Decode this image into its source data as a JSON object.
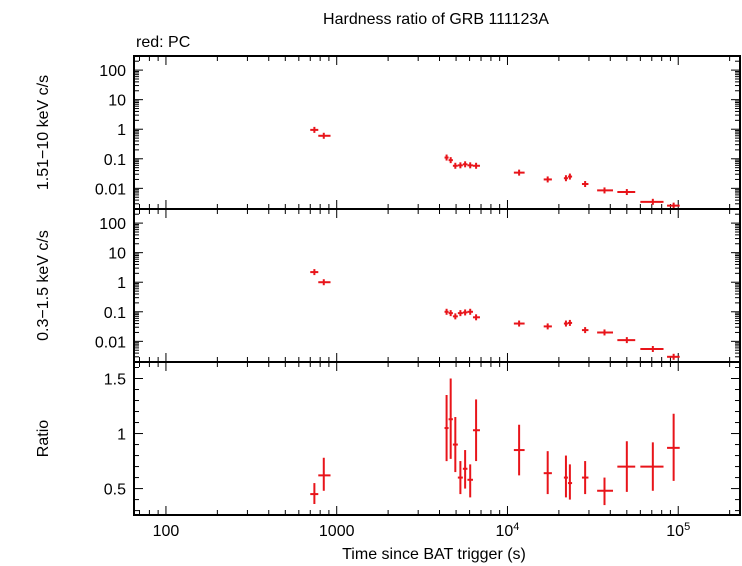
{
  "title": "Hardness ratio of GRB 111123A",
  "legend_note": "red: PC",
  "colors": {
    "series": "#e8141a",
    "axes": "#000000"
  },
  "chart_data": [
    {
      "type": "scatter",
      "panel": "hard",
      "ylabel": "1.51−10 keV c/s",
      "yscale": "log",
      "ylim": [
        0.002,
        300
      ],
      "xscale": "log",
      "xlim": [
        65,
        230000
      ],
      "ytick_labels": [
        "100",
        "10",
        "1",
        "0.1",
        "0.01"
      ],
      "ytick_values": [
        100,
        10,
        1,
        0.1,
        0.01
      ],
      "series": [
        {
          "points": [
            {
              "x": 740,
              "xlo": 700,
              "xhi": 780,
              "y": 0.95
            },
            {
              "x": 840,
              "xlo": 780,
              "xhi": 920,
              "y": 0.6
            },
            {
              "x": 4400,
              "xlo": 4280,
              "xhi": 4520,
              "y": 0.11
            },
            {
              "x": 4650,
              "xlo": 4520,
              "xhi": 4790,
              "y": 0.09
            },
            {
              "x": 4950,
              "xlo": 4790,
              "xhi": 5120,
              "y": 0.058
            },
            {
              "x": 5300,
              "xlo": 5120,
              "xhi": 5480,
              "y": 0.06
            },
            {
              "x": 5650,
              "xlo": 5480,
              "xhi": 5830,
              "y": 0.065
            },
            {
              "x": 6050,
              "xlo": 5830,
              "xhi": 6280,
              "y": 0.06
            },
            {
              "x": 6550,
              "xlo": 6280,
              "xhi": 6900,
              "y": 0.058
            },
            {
              "x": 11700,
              "xlo": 10900,
              "xhi": 12600,
              "y": 0.034
            },
            {
              "x": 17200,
              "xlo": 16300,
              "xhi": 18200,
              "y": 0.02
            },
            {
              "x": 22000,
              "xlo": 21400,
              "xhi": 22600,
              "y": 0.022
            },
            {
              "x": 23200,
              "xlo": 22600,
              "xhi": 23900,
              "y": 0.025
            },
            {
              "x": 28500,
              "xlo": 27300,
              "xhi": 29800,
              "y": 0.014
            },
            {
              "x": 37000,
              "xlo": 33500,
              "xhi": 41500,
              "y": 0.0085
            },
            {
              "x": 50000,
              "xlo": 44000,
              "xhi": 56000,
              "y": 0.0075
            },
            {
              "x": 71000,
              "xlo": 60000,
              "xhi": 82000,
              "y": 0.0035
            },
            {
              "x": 94000,
              "xlo": 86000,
              "xhi": 102000,
              "y": 0.0026
            }
          ]
        }
      ]
    },
    {
      "type": "scatter",
      "panel": "soft",
      "ylabel": "0.3−1.5 keV c/s",
      "yscale": "log",
      "ylim": [
        0.002,
        300
      ],
      "xscale": "log",
      "xlim": [
        65,
        230000
      ],
      "ytick_labels": [
        "100",
        "10",
        "1",
        "0.1",
        "0.01"
      ],
      "ytick_values": [
        100,
        10,
        1,
        0.1,
        0.01
      ],
      "series": [
        {
          "points": [
            {
              "x": 740,
              "xlo": 700,
              "xhi": 780,
              "y": 2.2
            },
            {
              "x": 840,
              "xlo": 780,
              "xhi": 920,
              "y": 1.0
            },
            {
              "x": 4400,
              "xlo": 4280,
              "xhi": 4520,
              "y": 0.1
            },
            {
              "x": 4650,
              "xlo": 4520,
              "xhi": 4790,
              "y": 0.09
            },
            {
              "x": 4950,
              "xlo": 4790,
              "xhi": 5120,
              "y": 0.07
            },
            {
              "x": 5300,
              "xlo": 5120,
              "xhi": 5480,
              "y": 0.09
            },
            {
              "x": 5650,
              "xlo": 5480,
              "xhi": 5830,
              "y": 0.095
            },
            {
              "x": 6050,
              "xlo": 5830,
              "xhi": 6280,
              "y": 0.1
            },
            {
              "x": 6550,
              "xlo": 6280,
              "xhi": 6900,
              "y": 0.065
            },
            {
              "x": 11700,
              "xlo": 10900,
              "xhi": 12600,
              "y": 0.04
            },
            {
              "x": 17200,
              "xlo": 16300,
              "xhi": 18200,
              "y": 0.032
            },
            {
              "x": 22000,
              "xlo": 21400,
              "xhi": 22600,
              "y": 0.04
            },
            {
              "x": 23200,
              "xlo": 22600,
              "xhi": 23900,
              "y": 0.042
            },
            {
              "x": 28500,
              "xlo": 27300,
              "xhi": 29800,
              "y": 0.024
            },
            {
              "x": 37000,
              "xlo": 33500,
              "xhi": 41500,
              "y": 0.02
            },
            {
              "x": 50000,
              "xlo": 44000,
              "xhi": 56000,
              "y": 0.011
            },
            {
              "x": 71000,
              "xlo": 60000,
              "xhi": 82000,
              "y": 0.0055
            },
            {
              "x": 94000,
              "xlo": 86000,
              "xhi": 102000,
              "y": 0.003
            }
          ]
        }
      ]
    },
    {
      "type": "scatter",
      "panel": "ratio",
      "ylabel": "Ratio",
      "yscale": "linear",
      "ylim": [
        0.26,
        1.65
      ],
      "xscale": "log",
      "xlim": [
        65,
        230000
      ],
      "xlabel": "Time since BAT trigger (s)",
      "ytick_labels": [
        "1.5",
        "1",
        "0.5"
      ],
      "ytick_values": [
        1.5,
        1.0,
        0.5
      ],
      "xtick_labels": [
        "100",
        "1000",
        "10^4",
        "10^5"
      ],
      "xtick_values": [
        100,
        1000,
        10000,
        100000
      ],
      "series": [
        {
          "points": [
            {
              "x": 740,
              "xlo": 700,
              "xhi": 780,
              "y": 0.45,
              "ylo": 0.36,
              "yhi": 0.55
            },
            {
              "x": 840,
              "xlo": 780,
              "xhi": 920,
              "y": 0.62,
              "ylo": 0.48,
              "yhi": 0.78
            },
            {
              "x": 4400,
              "xlo": 4280,
              "xhi": 4520,
              "y": 1.05,
              "ylo": 0.75,
              "yhi": 1.35
            },
            {
              "x": 4650,
              "xlo": 4520,
              "xhi": 4790,
              "y": 1.13,
              "ylo": 0.77,
              "yhi": 1.5
            },
            {
              "x": 4950,
              "xlo": 4790,
              "xhi": 5120,
              "y": 0.9,
              "ylo": 0.65,
              "yhi": 1.15
            },
            {
              "x": 5300,
              "xlo": 5120,
              "xhi": 5480,
              "y": 0.6,
              "ylo": 0.45,
              "yhi": 0.75
            },
            {
              "x": 5650,
              "xlo": 5480,
              "xhi": 5830,
              "y": 0.68,
              "ylo": 0.5,
              "yhi": 0.85
            },
            {
              "x": 6050,
              "xlo": 5830,
              "xhi": 6280,
              "y": 0.58,
              "ylo": 0.42,
              "yhi": 0.72
            },
            {
              "x": 6550,
              "xlo": 6280,
              "xhi": 6900,
              "y": 1.03,
              "ylo": 0.75,
              "yhi": 1.31
            },
            {
              "x": 11700,
              "xlo": 10900,
              "xhi": 12600,
              "y": 0.85,
              "ylo": 0.62,
              "yhi": 1.08
            },
            {
              "x": 17200,
              "xlo": 16300,
              "xhi": 18200,
              "y": 0.64,
              "ylo": 0.45,
              "yhi": 0.84
            },
            {
              "x": 22000,
              "xlo": 21400,
              "xhi": 22600,
              "y": 0.6,
              "ylo": 0.42,
              "yhi": 0.8
            },
            {
              "x": 23200,
              "xlo": 22600,
              "xhi": 23900,
              "y": 0.55,
              "ylo": 0.4,
              "yhi": 0.72
            },
            {
              "x": 28500,
              "xlo": 27300,
              "xhi": 29800,
              "y": 0.6,
              "ylo": 0.45,
              "yhi": 0.75
            },
            {
              "x": 37000,
              "xlo": 33500,
              "xhi": 41500,
              "y": 0.48,
              "ylo": 0.35,
              "yhi": 0.6
            },
            {
              "x": 50000,
              "xlo": 44000,
              "xhi": 56000,
              "y": 0.7,
              "ylo": 0.47,
              "yhi": 0.93
            },
            {
              "x": 71000,
              "xlo": 60000,
              "xhi": 82000,
              "y": 0.7,
              "ylo": 0.48,
              "yhi": 0.92
            },
            {
              "x": 94000,
              "xlo": 86000,
              "xhi": 102000,
              "y": 0.87,
              "ylo": 0.57,
              "yhi": 1.18
            }
          ]
        }
      ]
    }
  ]
}
